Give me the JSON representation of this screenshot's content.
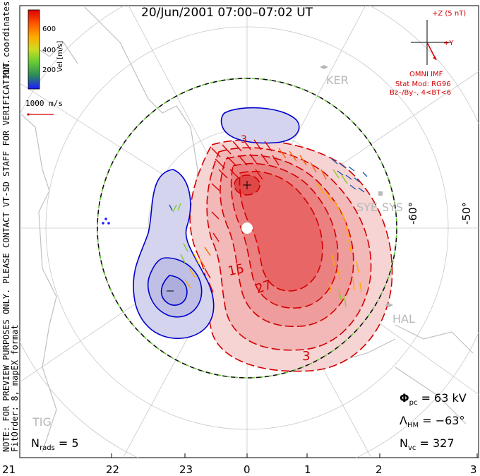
{
  "title": "20/Jun/2001 07:00–07:02 UT",
  "colorbar": {
    "label": "Vel [m/s]",
    "ticks": [
      "600",
      "400",
      "200"
    ],
    "colors": [
      "#1a1aff",
      "#2a8a5a",
      "#66cc33",
      "#ccdd22",
      "#ffaa00",
      "#ff5500",
      "#dd0000"
    ]
  },
  "coords_label": "MLT coordinates",
  "scale_vector": "1000 m/s",
  "imf": {
    "axis_z": "+Z (5 nT)",
    "axis_y": "+Y",
    "source": "OMNI IMF",
    "model": "Stat Mod: RG96",
    "condition": "Bz–/By–, 4<BT<6"
  },
  "notes": {
    "preview": "NOTE: FOR PREVIEW PURPOSES ONLY. PLEASE CONTACT VT-SD STAFF FOR VERIFICATION.",
    "fit": "FitOrder: 8, mapEX format"
  },
  "stations": [
    "KER",
    "SYE",
    "SYS",
    "HAL",
    "TIG"
  ],
  "lat_labels": [
    "-60°",
    "-50°"
  ],
  "contour_labels": [
    "15",
    "27",
    "3",
    "3"
  ],
  "stats": {
    "phi_pc_sym": "Φ",
    "phi_pc_sub": "pc",
    "phi_pc_val": "= 63 kV",
    "lambda_sym": "Λ",
    "lambda_sub": "HM",
    "lambda_val": "= −63°",
    "nvc_sym": "N",
    "nvc_sub": "vc",
    "nvc_val": "= 327",
    "nrads_sym": "N",
    "nrads_sub": "rads",
    "nrads_val": "= 5"
  },
  "mlt_ticks": [
    "21",
    "22",
    "23",
    "0",
    "1",
    "2",
    "3"
  ],
  "colors": {
    "red": "#d40000",
    "blue": "#0000cc",
    "positive_fill": "#f07070",
    "negative_fill": "#c8c8ee"
  }
}
